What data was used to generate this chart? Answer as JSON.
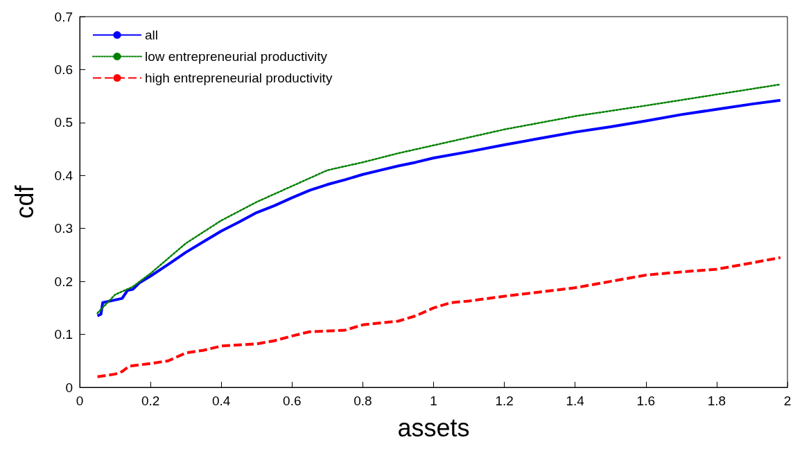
{
  "chart_data": {
    "type": "line",
    "xlabel": "assets",
    "ylabel": "cdf",
    "xlim": [
      0,
      2
    ],
    "xticks": [
      0,
      0.2,
      0.4,
      0.6,
      0.8,
      1,
      1.2,
      1.4,
      1.6,
      1.8,
      2
    ],
    "ylim": [
      0,
      0.7
    ],
    "yticks": [
      0,
      0.1,
      0.2,
      0.3,
      0.4,
      0.5,
      0.6,
      0.7
    ],
    "grid": false,
    "legend": "top left",
    "series": [
      {
        "name": "all",
        "color": "#0000ff",
        "line_style": "solid",
        "x": [
          0.05,
          0.06,
          0.065,
          0.1,
          0.12,
          0.135,
          0.15,
          0.17,
          0.2,
          0.25,
          0.3,
          0.35,
          0.4,
          0.45,
          0.5,
          0.55,
          0.6,
          0.65,
          0.7,
          0.75,
          0.8,
          0.85,
          0.9,
          0.95,
          1.0,
          1.1,
          1.2,
          1.3,
          1.4,
          1.5,
          1.6,
          1.7,
          1.8,
          1.9,
          1.98
        ],
        "values": [
          0.135,
          0.138,
          0.16,
          0.165,
          0.168,
          0.183,
          0.185,
          0.198,
          0.21,
          0.232,
          0.255,
          0.275,
          0.295,
          0.312,
          0.33,
          0.343,
          0.358,
          0.372,
          0.383,
          0.392,
          0.402,
          0.41,
          0.418,
          0.425,
          0.433,
          0.445,
          0.458,
          0.47,
          0.482,
          0.492,
          0.503,
          0.515,
          0.525,
          0.535,
          0.542
        ]
      },
      {
        "name": "low entrepreneurial productivity",
        "color": "#008000",
        "line_style": "dotted",
        "x": [
          0.05,
          0.1,
          0.15,
          0.2,
          0.3,
          0.4,
          0.5,
          0.6,
          0.7,
          0.8,
          0.9,
          1.0,
          1.2,
          1.4,
          1.6,
          1.8,
          1.98
        ],
        "values": [
          0.14,
          0.175,
          0.19,
          0.215,
          0.272,
          0.315,
          0.35,
          0.38,
          0.41,
          0.425,
          0.442,
          0.457,
          0.487,
          0.512,
          0.532,
          0.553,
          0.572
        ]
      },
      {
        "name": "high entrepreneurial productivity",
        "color": "#ff0000",
        "line_style": "dashed",
        "x": [
          0.05,
          0.1,
          0.12,
          0.14,
          0.2,
          0.25,
          0.3,
          0.35,
          0.4,
          0.5,
          0.55,
          0.6,
          0.65,
          0.75,
          0.8,
          0.9,
          0.95,
          1.0,
          1.05,
          1.1,
          1.2,
          1.3,
          1.4,
          1.5,
          1.6,
          1.7,
          1.8,
          1.9,
          1.98
        ],
        "values": [
          0.02,
          0.025,
          0.03,
          0.04,
          0.045,
          0.05,
          0.065,
          0.07,
          0.078,
          0.082,
          0.088,
          0.097,
          0.105,
          0.108,
          0.118,
          0.125,
          0.135,
          0.15,
          0.16,
          0.163,
          0.172,
          0.18,
          0.188,
          0.2,
          0.212,
          0.218,
          0.223,
          0.235,
          0.245
        ]
      }
    ]
  }
}
